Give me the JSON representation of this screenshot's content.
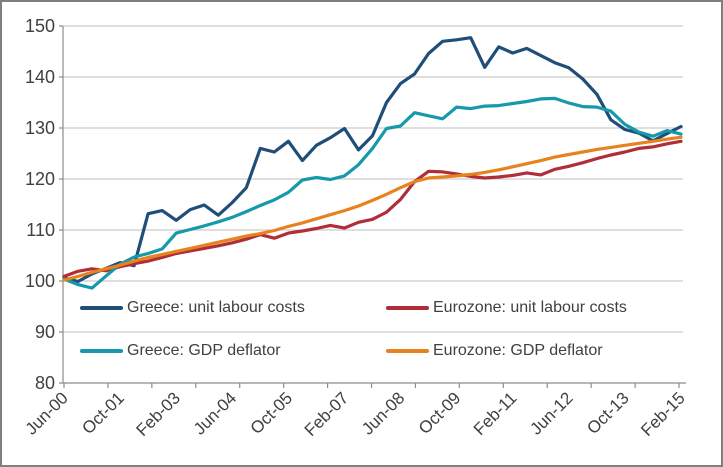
{
  "window": {
    "border_color": "#7f7f7f",
    "background_color": "#ffffff"
  },
  "styles": {
    "gridline_color": "#bfbfbf",
    "axis_color": "#8c8c8c",
    "text_color": "#404040",
    "line_width": 3.2
  },
  "chart_data": {
    "type": "line",
    "title": "",
    "xlabel": "",
    "ylabel": "",
    "ylim": [
      80,
      150
    ],
    "ystep": 10,
    "grid": true,
    "legend_position": "inside-plot, bottom, two rows x two columns",
    "y_tick_labels": [
      "80",
      "90",
      "100",
      "110",
      "120",
      "130",
      "140",
      "150"
    ],
    "x_visible_tick_labels": [
      "Jun-00",
      "Oct-01",
      "Feb-03",
      "Jun-04",
      "Oct-05",
      "Feb-07",
      "Jun-08",
      "Oct-09",
      "Feb-11",
      "Jun-12",
      "Oct-13",
      "Feb-15"
    ],
    "x_label_every": 4,
    "categories": [
      "Jun-00",
      "Oct-00",
      "Feb-01",
      "Jun-01",
      "Oct-01",
      "Feb-02",
      "Jun-02",
      "Oct-02",
      "Feb-03",
      "Jun-03",
      "Oct-03",
      "Feb-04",
      "Jun-04",
      "Oct-04",
      "Feb-05",
      "Jun-05",
      "Oct-05",
      "Feb-06",
      "Jun-06",
      "Oct-06",
      "Feb-07",
      "Jun-07",
      "Oct-07",
      "Feb-08",
      "Jun-08",
      "Oct-08",
      "Feb-09",
      "Jun-09",
      "Oct-09",
      "Feb-10",
      "Jun-10",
      "Oct-10",
      "Feb-11",
      "Jun-11",
      "Oct-11",
      "Feb-12",
      "Jun-12",
      "Oct-12",
      "Feb-13",
      "Jun-13",
      "Oct-13",
      "Feb-14",
      "Jun-14",
      "Oct-14",
      "Feb-15"
    ],
    "series": [
      {
        "name": "Greece: unit labour costs",
        "color": "#1F4E79",
        "values": [
          100.6,
          99.9,
          101.4,
          102.5,
          103.6,
          103.0,
          113.2,
          113.8,
          111.9,
          114.0,
          114.9,
          112.9,
          115.4,
          118.3,
          126.0,
          125.3,
          127.4,
          123.6,
          126.6,
          128.1,
          129.9,
          125.7,
          128.5,
          135.0,
          138.7,
          140.6,
          144.6,
          147.0,
          147.3,
          147.7,
          141.9,
          145.9,
          144.7,
          145.6,
          144.2,
          142.8,
          141.8,
          139.6,
          136.6,
          131.6,
          129.7,
          129.0,
          127.5,
          128.9,
          130.3
        ]
      },
      {
        "name": "Eurozone: unit labour costs",
        "color": "#B02E38",
        "values": [
          100.9,
          101.9,
          102.4,
          102.0,
          102.8,
          103.4,
          103.9,
          104.6,
          105.4,
          105.9,
          106.4,
          106.9,
          107.5,
          108.2,
          109.1,
          108.4,
          109.4,
          109.8,
          110.3,
          110.9,
          110.4,
          111.5,
          112.1,
          113.5,
          116.0,
          119.5,
          121.5,
          121.4,
          121.0,
          120.5,
          120.2,
          120.4,
          120.7,
          121.2,
          120.8,
          121.9,
          122.5,
          123.2,
          124.0,
          124.7,
          125.3,
          126.0,
          126.3,
          126.9,
          127.4
        ]
      },
      {
        "name": "Greece: GDP deflator",
        "color": "#1599AB",
        "values": [
          100.4,
          99.3,
          98.6,
          101.0,
          103.3,
          104.7,
          105.4,
          106.3,
          109.4,
          110.1,
          110.8,
          111.6,
          112.5,
          113.6,
          114.8,
          115.9,
          117.4,
          119.8,
          120.3,
          119.9,
          120.6,
          122.8,
          126.0,
          129.9,
          130.4,
          133.0,
          132.4,
          131.8,
          134.1,
          133.8,
          134.3,
          134.4,
          134.8,
          135.2,
          135.7,
          135.8,
          134.9,
          134.2,
          134.1,
          133.3,
          130.7,
          129.2,
          128.4,
          129.5,
          128.8
        ]
      },
      {
        "name": "Eurozone: GDP deflator",
        "color": "#E8821E",
        "values": [
          100.2,
          100.9,
          101.7,
          102.4,
          103.1,
          103.9,
          104.6,
          105.2,
          105.8,
          106.4,
          107.0,
          107.6,
          108.2,
          108.8,
          109.3,
          109.9,
          110.7,
          111.4,
          112.2,
          113.0,
          113.8,
          114.7,
          115.8,
          117.0,
          118.3,
          119.5,
          120.2,
          120.4,
          120.6,
          120.9,
          121.3,
          121.8,
          122.4,
          123.0,
          123.6,
          124.3,
          124.8,
          125.3,
          125.8,
          126.2,
          126.6,
          127.0,
          127.4,
          127.8,
          128.2
        ]
      }
    ]
  }
}
